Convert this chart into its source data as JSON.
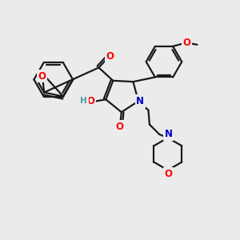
{
  "bg_color": "#ebebeb",
  "bond_color": "#1a1a1a",
  "bond_width": 1.6,
  "atom_colors": {
    "O": "#ff0000",
    "N": "#0000cc",
    "C": "#1a1a1a",
    "H": "#4a9a9a"
  },
  "font_size_atom": 8.5
}
